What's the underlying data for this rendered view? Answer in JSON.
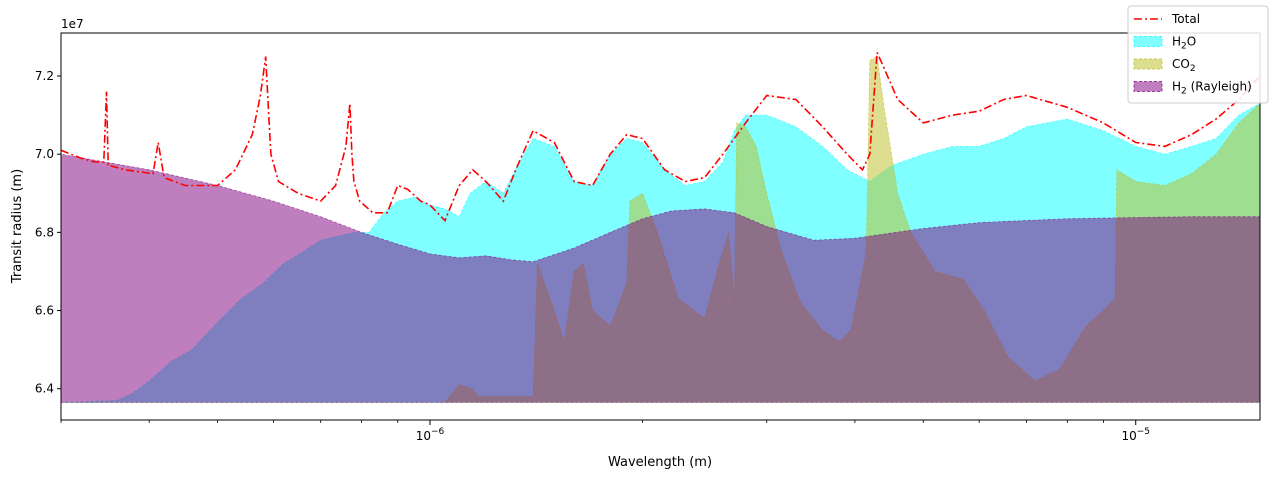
{
  "chart_data": {
    "type": "area",
    "xlabel": "Wavelength (m)",
    "ylabel": "Transit radius (m)",
    "y_offset_label": "1e7",
    "x_scale": "log",
    "xlim": [
      3e-07,
      1.5e-05
    ],
    "ylim": [
      63200000.0,
      73100000.0
    ],
    "y_ticks": [
      {
        "value": 64000000.0,
        "label": "6.4"
      },
      {
        "value": 66000000.0,
        "label": "6.6"
      },
      {
        "value": 68000000.0,
        "label": "6.8"
      },
      {
        "value": 70000000.0,
        "label": "7.0"
      },
      {
        "value": 72000000.0,
        "label": "7.2"
      }
    ],
    "x_ticks": [
      {
        "value": 1e-06,
        "base": "10",
        "exp": "−6"
      },
      {
        "value": 1e-05,
        "base": "10",
        "exp": "−5"
      }
    ],
    "legend_position": "top-right",
    "grid": false,
    "series": [
      {
        "name": "H2O",
        "legend_label": "H",
        "legend_sub": "2",
        "legend_suffix": "O",
        "kind": "fill",
        "color": "#00ffff",
        "alpha": 0.5,
        "baseline": 63650000.0,
        "x": [
          3e-07,
          3.6e-07,
          3.8e-07,
          4e-07,
          4.3e-07,
          4.6e-07,
          5e-07,
          5.4e-07,
          5.8e-07,
          6.2e-07,
          6.6e-07,
          7e-07,
          7.4e-07,
          7.8e-07,
          8.2e-07,
          8.6e-07,
          9e-07,
          9.5e-07,
          1e-06,
          1.05e-06,
          1.1e-06,
          1.14e-06,
          1.2e-06,
          1.27e-06,
          1.33e-06,
          1.4e-06,
          1.5e-06,
          1.6e-06,
          1.7e-06,
          1.8e-06,
          1.9e-06,
          2e-06,
          2.15e-06,
          2.3e-06,
          2.45e-06,
          2.6e-06,
          2.7e-06,
          2.8e-06,
          3e-06,
          3.3e-06,
          3.6e-06,
          3.9e-06,
          4.2e-06,
          4.5e-06,
          5e-06,
          5.5e-06,
          6e-06,
          6.5e-06,
          7e-06,
          8e-06,
          9e-06,
          1e-05,
          1.1e-05,
          1.2e-05,
          1.3e-05,
          1.4e-05,
          1.5e-05
        ],
        "y": [
          63650000.0,
          63700000.0,
          63900000.0,
          64200000.0,
          64700000.0,
          65000000.0,
          65700000.0,
          66300000.0,
          66700000.0,
          67200000.0,
          67500000.0,
          67800000.0,
          67900000.0,
          68000000.0,
          68000000.0,
          68500000.0,
          68800000.0,
          68900000.0,
          68700000.0,
          68600000.0,
          68400000.0,
          69000000.0,
          69300000.0,
          69000000.0,
          69700000.0,
          70400000.0,
          70200000.0,
          69300000.0,
          69200000.0,
          70000000.0,
          70400000.0,
          70300000.0,
          69600000.0,
          69200000.0,
          69300000.0,
          69800000.0,
          70600000.0,
          71000000.0,
          71000000.0,
          70700000.0,
          70200000.0,
          69600000.0,
          69300000.0,
          69700000.0,
          70000000.0,
          70200000.0,
          70200000.0,
          70400000.0,
          70700000.0,
          70900000.0,
          70600000.0,
          70200000.0,
          70000000.0,
          70200000.0,
          70400000.0,
          71000000.0,
          71300000.0
        ]
      },
      {
        "name": "CO2",
        "legend_label": "CO",
        "legend_sub": "2",
        "legend_suffix": "",
        "kind": "fill",
        "color": "#bcbd22",
        "alpha": 0.5,
        "baseline": 63650000.0,
        "x": [
          3e-07,
          1.05e-06,
          1.1e-06,
          1.15e-06,
          1.17e-06,
          1.4e-06,
          1.42e-06,
          1.5e-06,
          1.55e-06,
          1.6e-06,
          1.65e-06,
          1.7e-06,
          1.8e-06,
          1.9e-06,
          1.92e-06,
          2e-06,
          2.1e-06,
          2.25e-06,
          2.45e-06,
          2.55e-06,
          2.65e-06,
          2.7e-06,
          2.72e-06,
          2.8e-06,
          2.9e-06,
          3e-06,
          3.15e-06,
          3.35e-06,
          3.6e-06,
          3.8e-06,
          3.95e-06,
          4.15e-06,
          4.2e-06,
          4.3e-06,
          4.4e-06,
          4.6e-06,
          4.8e-06,
          5.2e-06,
          5.7e-06,
          6.1e-06,
          6.6e-06,
          7.2e-06,
          7.8e-06,
          8.5e-06,
          9e-06,
          9.35e-06,
          9.4e-06,
          1e-05,
          1.1e-05,
          1.2e-05,
          1.3e-05,
          1.4e-05,
          1.5e-05
        ],
        "y": [
          63650000.0,
          63650000.0,
          64100000.0,
          64000000.0,
          63800000.0,
          63800000.0,
          67200000.0,
          66000000.0,
          65200000.0,
          67000000.0,
          67200000.0,
          66000000.0,
          65600000.0,
          66700000.0,
          68800000.0,
          69000000.0,
          68000000.0,
          66300000.0,
          65800000.0,
          67000000.0,
          68000000.0,
          66200000.0,
          70800000.0,
          70700000.0,
          70200000.0,
          69000000.0,
          67500000.0,
          66200000.0,
          65500000.0,
          65200000.0,
          65500000.0,
          67500000.0,
          72400000.0,
          72500000.0,
          71200000.0,
          69000000.0,
          68000000.0,
          67000000.0,
          66800000.0,
          66000000.0,
          64800000.0,
          64200000.0,
          64500000.0,
          65600000.0,
          66000000.0,
          66300000.0,
          69600000.0,
          69300000.0,
          69200000.0,
          69500000.0,
          70000000.0,
          70800000.0,
          71300000.0
        ]
      },
      {
        "name": "H2 (Rayleigh)",
        "legend_label": "H",
        "legend_sub": "2",
        "legend_suffix": " (Rayleigh)",
        "kind": "fill",
        "color": "#800080",
        "alpha": 0.5,
        "baseline": 63650000.0,
        "x": [
          3e-07,
          4e-07,
          5e-07,
          6e-07,
          7e-07,
          8e-07,
          9e-07,
          1e-06,
          1.1e-06,
          1.2e-06,
          1.3e-06,
          1.4e-06,
          1.6e-06,
          1.8e-06,
          2e-06,
          2.2e-06,
          2.45e-06,
          2.7e-06,
          3e-06,
          3.5e-06,
          4e-06,
          5e-06,
          6e-06,
          8e-06,
          1e-05,
          1.2e-05,
          1.5e-05
        ],
        "y": [
          70000000.0,
          69600000.0,
          69200000.0,
          68800000.0,
          68400000.0,
          68000000.0,
          67700000.0,
          67450000.0,
          67350000.0,
          67400000.0,
          67300000.0,
          67250000.0,
          67600000.0,
          68000000.0,
          68350000.0,
          68550000.0,
          68600000.0,
          68500000.0,
          68150000.0,
          67800000.0,
          67850000.0,
          68100000.0,
          68250000.0,
          68350000.0,
          68380000.0,
          68400000.0,
          68400000.0
        ]
      },
      {
        "name": "Total",
        "legend_label": "Total",
        "legend_sub": "",
        "legend_suffix": "",
        "kind": "line",
        "color": "#ff0000",
        "dash": "8,3,2,3",
        "x": [
          3e-07,
          3.2e-07,
          3.35e-07,
          3.45e-07,
          3.48e-07,
          3.5e-07,
          3.53e-07,
          3.7e-07,
          4.05e-07,
          4.12e-07,
          4.2e-07,
          4.5e-07,
          5e-07,
          5.3e-07,
          5.6e-07,
          5.75e-07,
          5.85e-07,
          5.9e-07,
          5.95e-07,
          6.1e-07,
          6.5e-07,
          7e-07,
          7.35e-07,
          7.6e-07,
          7.7e-07,
          7.75e-07,
          7.8e-07,
          7.95e-07,
          8.3e-07,
          8.7e-07,
          9e-07,
          9.3e-07,
          9.7e-07,
          1e-06,
          1.05e-06,
          1.1e-06,
          1.15e-06,
          1.2e-06,
          1.27e-06,
          1.33e-06,
          1.4e-06,
          1.5e-06,
          1.6e-06,
          1.7e-06,
          1.8e-06,
          1.9e-06,
          2e-06,
          2.15e-06,
          2.3e-06,
          2.45e-06,
          2.6e-06,
          2.8e-06,
          3e-06,
          3.3e-06,
          3.6e-06,
          3.9e-06,
          4.1e-06,
          4.2e-06,
          4.3e-06,
          4.4e-06,
          4.6e-06,
          5e-06,
          5.5e-06,
          6e-06,
          6.5e-06,
          7e-06,
          8e-06,
          9e-06,
          1e-05,
          1.1e-05,
          1.2e-05,
          1.3e-05,
          1.4e-05,
          1.5e-05
        ],
        "y": [
          70100000.0,
          69900000.0,
          69800000.0,
          69800000.0,
          71600000.0,
          69700000.0,
          69700000.0,
          69600000.0,
          69500000.0,
          70300000.0,
          69400000.0,
          69200000.0,
          69200000.0,
          69600000.0,
          70500000.0,
          71500000.0,
          72500000.0,
          71200000.0,
          70000000.0,
          69300000.0,
          69000000.0,
          68800000.0,
          69200000.0,
          70200000.0,
          71300000.0,
          70000000.0,
          69300000.0,
          68800000.0,
          68500000.0,
          68500000.0,
          69200000.0,
          69100000.0,
          68800000.0,
          68700000.0,
          68300000.0,
          69200000.0,
          69600000.0,
          69300000.0,
          68800000.0,
          69700000.0,
          70600000.0,
          70300000.0,
          69300000.0,
          69200000.0,
          70000000.0,
          70500000.0,
          70400000.0,
          69600000.0,
          69300000.0,
          69400000.0,
          70000000.0,
          70800000.0,
          71500000.0,
          71400000.0,
          70700000.0,
          70000000.0,
          69600000.0,
          70000000.0,
          72600000.0,
          72200000.0,
          71400000.0,
          70800000.0,
          71000000.0,
          71100000.0,
          71400000.0,
          71500000.0,
          71200000.0,
          70800000.0,
          70300000.0,
          70200000.0,
          70500000.0,
          70900000.0,
          71400000.0,
          72000000.0
        ]
      }
    ]
  }
}
